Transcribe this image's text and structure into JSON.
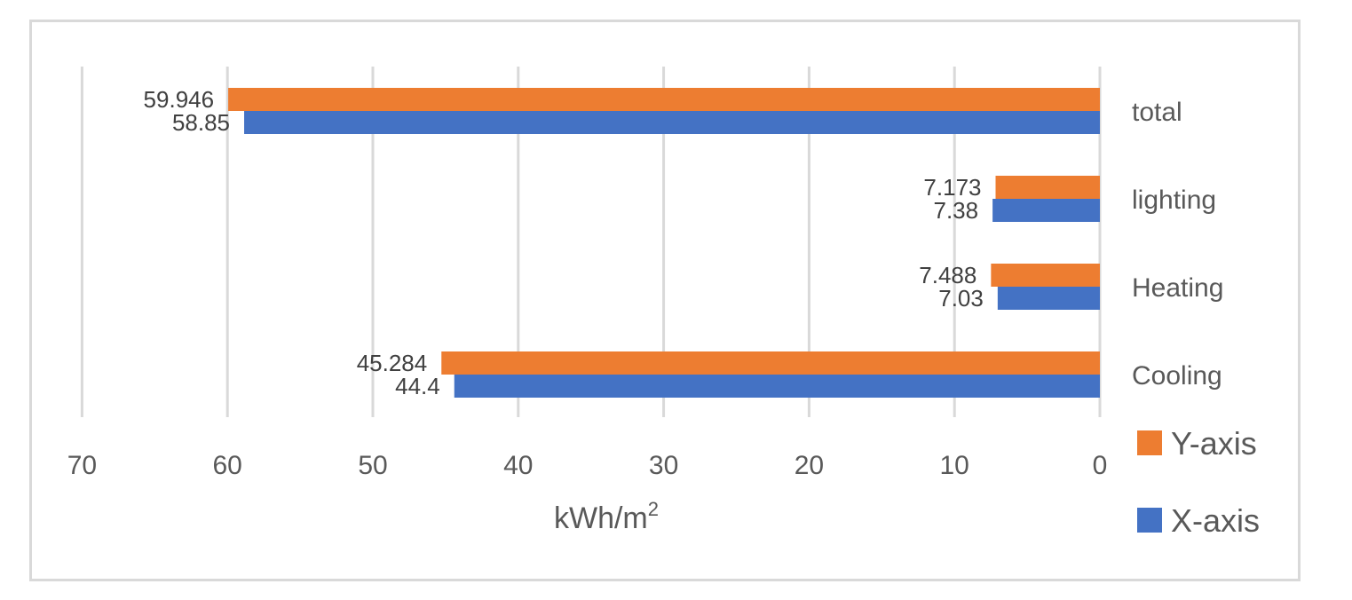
{
  "chart_data": {
    "type": "bar",
    "orientation": "horizontal",
    "x_axis_direction": "reversed",
    "categories": [
      "Cooling",
      "Heating",
      "lighting",
      "total"
    ],
    "series": [
      {
        "name": "Y-axis",
        "color": "#ED7D31",
        "values": [
          45.284,
          7.488,
          7.173,
          59.946
        ],
        "labels": [
          "45.284",
          "7.488",
          "7.173",
          "59.946"
        ]
      },
      {
        "name": "X-axis",
        "color": "#4472C4",
        "values": [
          44.4,
          7.03,
          7.38,
          58.85
        ],
        "labels": [
          "44.4",
          "7.03",
          "7.38",
          "58.85"
        ]
      }
    ],
    "xlim": [
      0,
      70
    ],
    "xticks": [
      70,
      60,
      50,
      40,
      30,
      20,
      10,
      0
    ],
    "xlabel": "kWh/m",
    "xlabel_superscript": "2",
    "ylabel": "",
    "title": "",
    "grid": "vertical",
    "legend_position": "bottom-right"
  }
}
